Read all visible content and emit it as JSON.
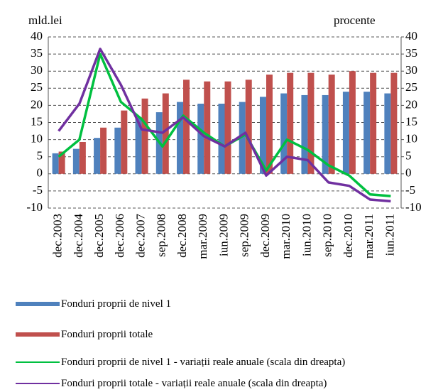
{
  "chart_data": {
    "type": "bar",
    "y_label": "mld.lei",
    "y2_label": "procente",
    "categories": [
      "dec.2003",
      "dec.2004",
      "dec.2005",
      "dec.2006",
      "dec.2007",
      "sep.2008",
      "dec.2008",
      "mar.2009",
      "iun.2009",
      "sep.2009",
      "dec.2009",
      "mar.2010",
      "iun.2010",
      "sep.2010",
      "dec.2010",
      "mar.2011",
      "iun.2011"
    ],
    "series": [
      {
        "name": "Fonduri proprii de nivel 1",
        "color": "#4f81bd",
        "type": "bar",
        "values": [
          6,
          7.3,
          10.5,
          13.5,
          16.5,
          18,
          21,
          20.5,
          20.5,
          21,
          22.5,
          23.5,
          23,
          23,
          24,
          24,
          23.5
        ]
      },
      {
        "name": "Fonduri proprii totale",
        "color": "#c0504d",
        "type": "bar",
        "values": [
          6.5,
          9.3,
          13.5,
          18.5,
          22,
          23.5,
          27.5,
          27,
          27,
          27.5,
          29,
          29.5,
          29.5,
          29,
          30,
          29.5,
          29.5
        ]
      },
      {
        "name": "Fonduri proprii de nivel 1 - variații reale anuale (scala din dreapta)",
        "color": "#00c040",
        "type": "line",
        "axis": "y2",
        "values": [
          5,
          10,
          35,
          21,
          16,
          8,
          17,
          12,
          8,
          11.5,
          1,
          10,
          7,
          2.5,
          -0.5,
          -6,
          -6.5
        ]
      },
      {
        "name": "Fonduri proprii totale - variații reale anuale (scala din dreapta)",
        "color": "#7030a0",
        "type": "line",
        "axis": "y2",
        "values": [
          12.5,
          20.5,
          36.5,
          26,
          13,
          12,
          16.5,
          11,
          8,
          12,
          -0.5,
          5,
          4,
          -2.5,
          -3.5,
          -7.5,
          -8
        ]
      }
    ],
    "ylim": [
      -10,
      40
    ],
    "yticks": [
      -10,
      -5,
      0,
      5,
      10,
      15,
      20,
      25,
      30,
      35,
      40
    ],
    "y2lim": [
      -10,
      40
    ],
    "y2ticks": [
      -10,
      -5,
      0,
      5,
      10,
      15,
      20,
      25,
      30,
      35,
      40
    ],
    "grid": true
  }
}
